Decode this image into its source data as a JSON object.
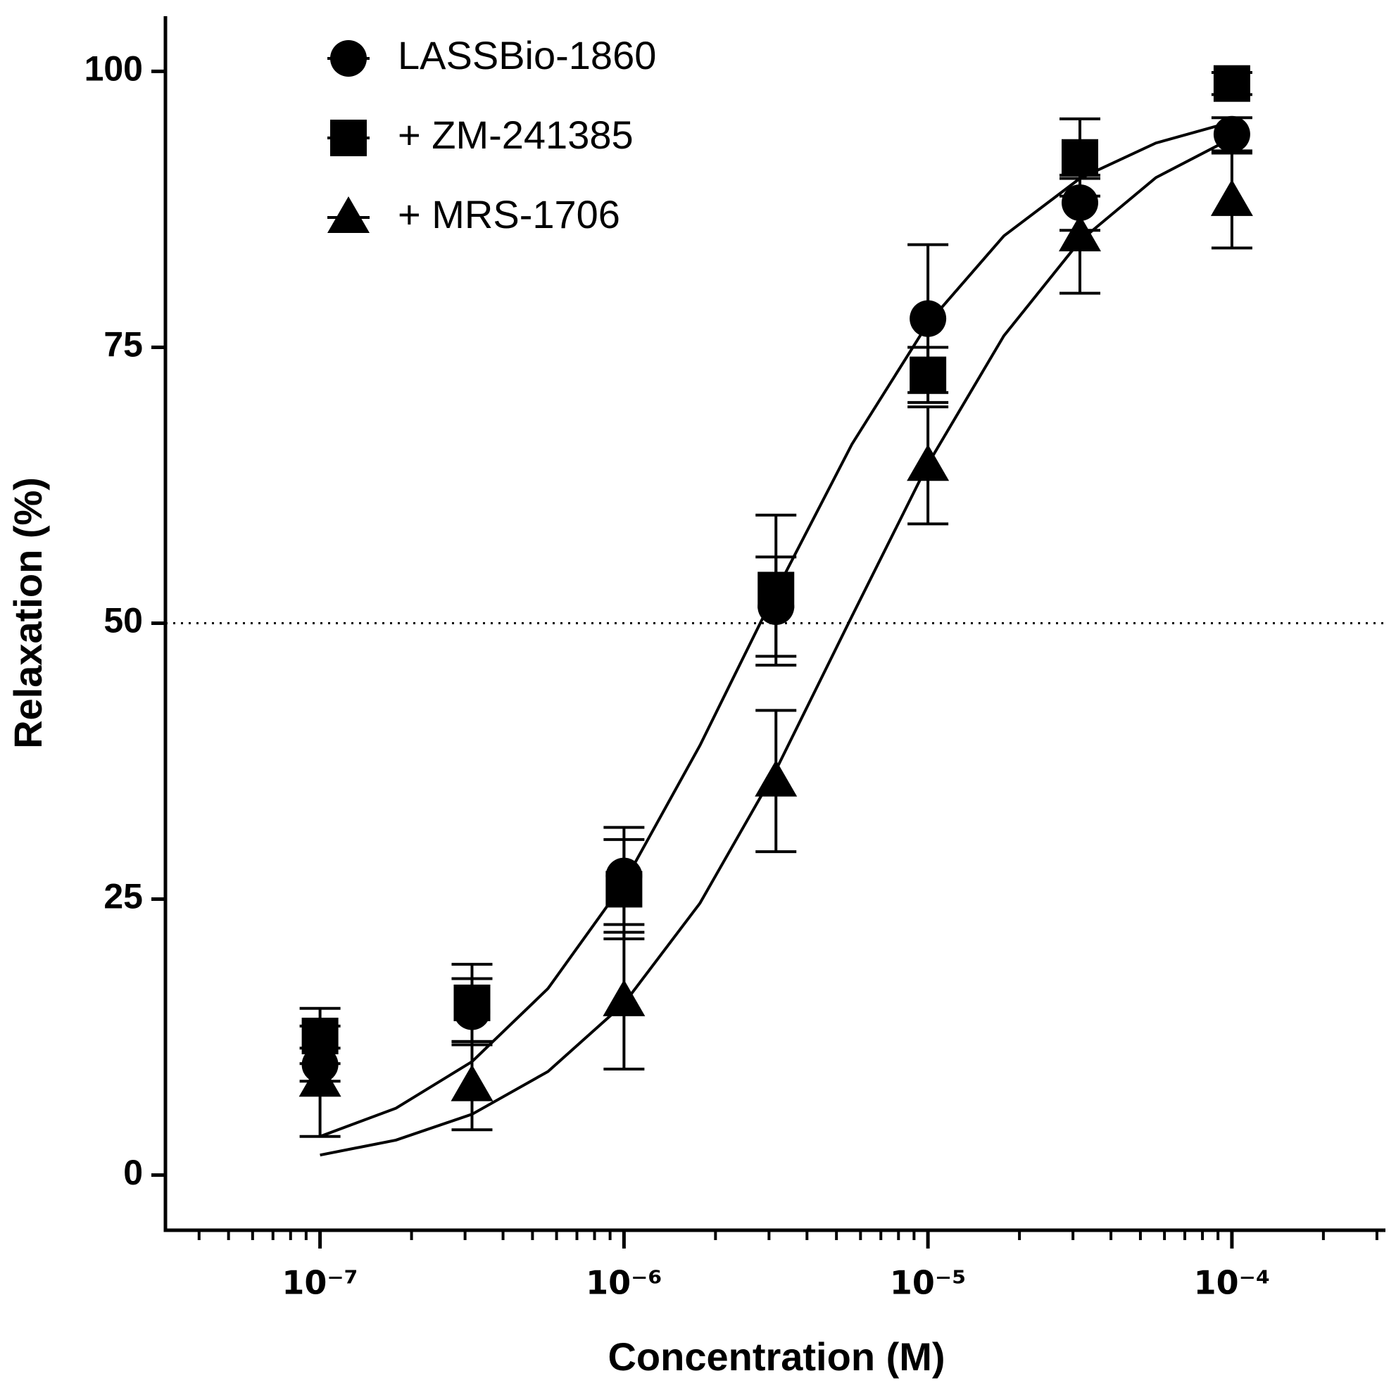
{
  "chart_data": {
    "type": "scatter",
    "xlabel": "Concentration (M)",
    "ylabel": "Relaxation (%)",
    "xscale": "log",
    "x": [
      1e-07,
      3.162e-07,
      1e-06,
      3.162e-06,
      1e-05,
      3.162e-05,
      0.0001
    ],
    "series": [
      {
        "name": "LASSBio-1860",
        "marker": "circle",
        "color": "#000000",
        "values": [
          10,
          14.8,
          27.1,
          51.5,
          77.6,
          88.1,
          94.3
        ],
        "errors": [
          1.5,
          3,
          4.4,
          4.5,
          6.7,
          2.5,
          1.5
        ]
      },
      {
        "name": "+ ZM-241385",
        "marker": "square",
        "color": "#000000",
        "values": [
          12.6,
          15.6,
          25.9,
          53,
          72.5,
          92.2,
          98.9
        ],
        "errors": [
          2.5,
          3.5,
          4.5,
          6.8,
          2.5,
          3.5,
          1
        ]
      },
      {
        "name": "+ MRS-1706",
        "marker": "triangle",
        "color": "#000000",
        "values": [
          8.5,
          8.1,
          15.8,
          35.7,
          64.3,
          85.1,
          88.3
        ],
        "errors": [
          5,
          4,
          6.2,
          6.4,
          5.3,
          5.2,
          4.3
        ]
      }
    ],
    "curves": [
      {
        "color": "#000000",
        "x": [
          1e-07,
          1.778e-07,
          3.162e-07,
          5.623e-07,
          1e-06,
          1.778e-06,
          3.162e-06,
          5.623e-06,
          1e-05,
          1.778e-05,
          3.162e-05,
          5.623e-05,
          0.0001
        ],
        "values": [
          3.5,
          6.06,
          10.28,
          16.9,
          26.49,
          38.93,
          52.89,
          66.22,
          77.17,
          85.09,
          90.3,
          93.51,
          95.42
        ]
      },
      {
        "color": "#000000",
        "x": [
          1e-07,
          1.778e-07,
          3.162e-07,
          5.623e-07,
          1e-06,
          1.778e-06,
          3.162e-06,
          5.623e-06,
          1e-05,
          1.778e-05,
          3.162e-05,
          5.623e-05,
          0.0001
        ],
        "values": [
          1.81,
          3.17,
          5.51,
          9.38,
          15.54,
          24.63,
          36.69,
          50.64,
          64.41,
          76.04,
          84.63,
          90.37,
          93.95
        ]
      }
    ],
    "hline": 50,
    "xlim": [
      3.1e-08,
      0.00032
    ],
    "ylim": [
      -5,
      105
    ],
    "xticks": [
      {
        "value": 1e-07,
        "label": "10⁻⁷"
      },
      {
        "value": 1e-06,
        "label": "10⁻⁶"
      },
      {
        "value": 1e-05,
        "label": "10⁻⁵"
      },
      {
        "value": 0.0001,
        "label": "10⁻⁴"
      }
    ],
    "xminorticks": [
      4e-08,
      5e-08,
      6e-08,
      7e-08,
      8e-08,
      9e-08,
      2e-07,
      3e-07,
      4e-07,
      5e-07,
      6e-07,
      7e-07,
      8e-07,
      9e-07,
      2e-06,
      3e-06,
      4e-06,
      5e-06,
      6e-06,
      7e-06,
      8e-06,
      9e-06,
      2e-05,
      3e-05,
      4e-05,
      5e-05,
      6e-05,
      7e-05,
      8e-05,
      9e-05,
      0.0002,
      0.0003
    ],
    "yticks": [
      0,
      25,
      50,
      75,
      100
    ],
    "grid": false,
    "legend": "top-left"
  }
}
